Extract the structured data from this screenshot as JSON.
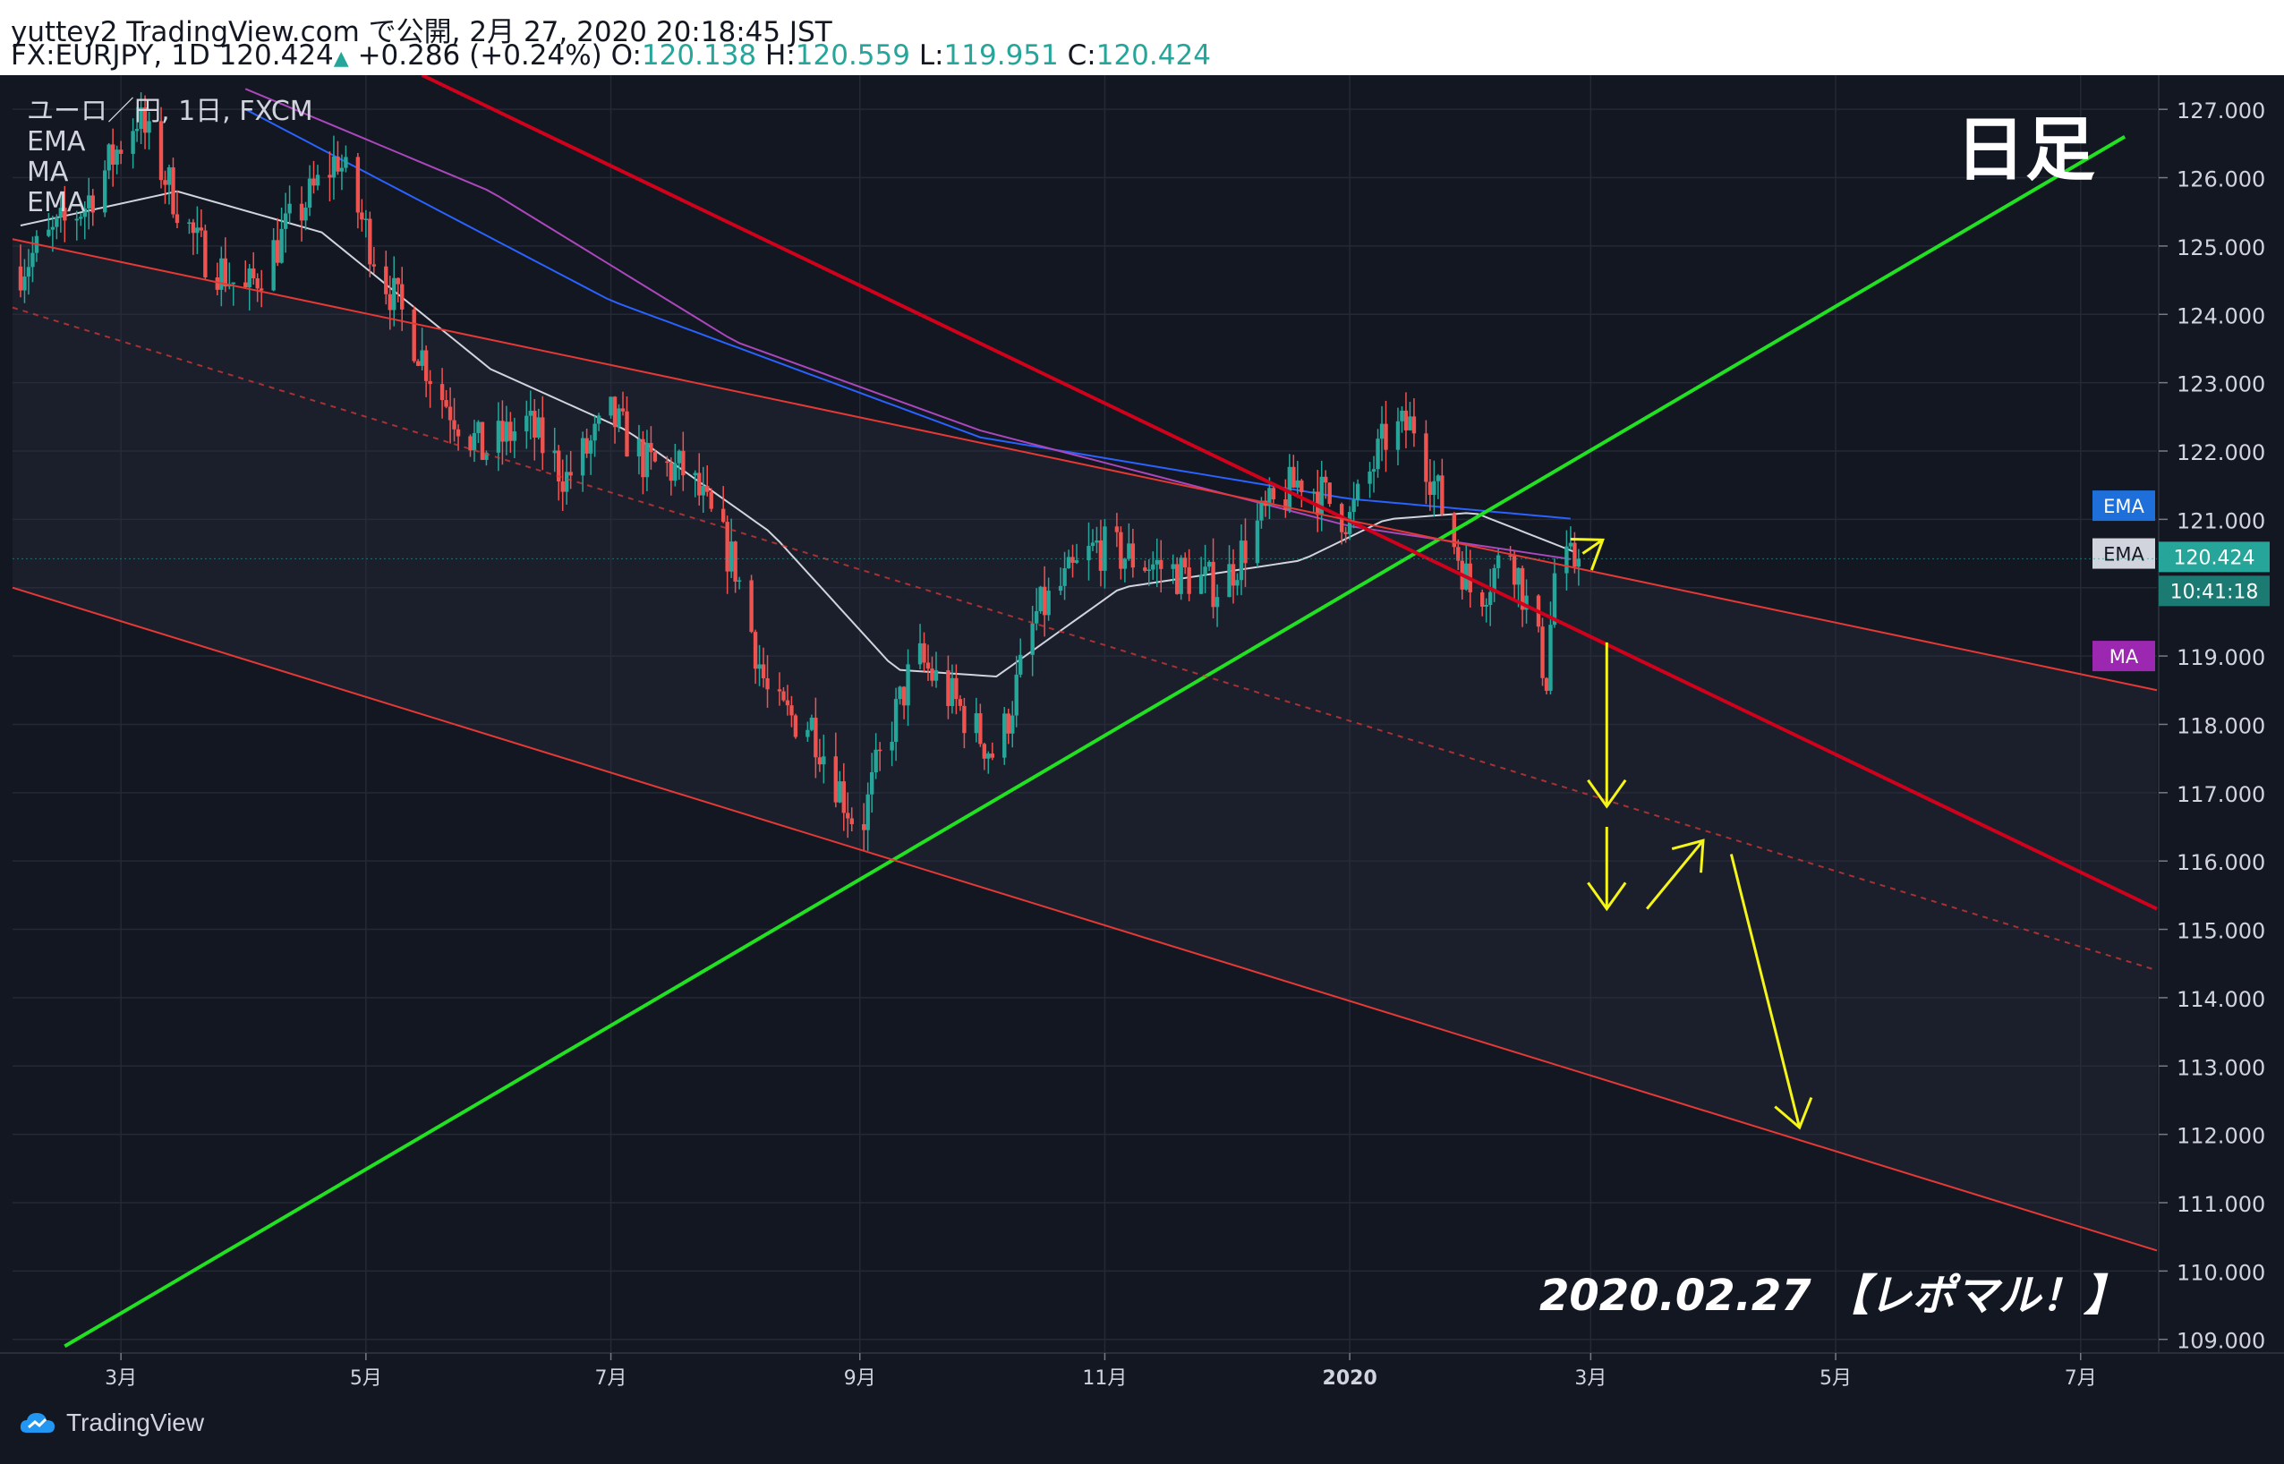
{
  "header": {
    "line1": "yuttey2 TradingView.com で公開, 2月 27, 2020 20:18:45 JST",
    "symbol": "FX:EURJPY, 1D 120.424",
    "change": "+0.286 (+0.24%)",
    "o_label": "O:",
    "o_value": "120.138",
    "h_label": "H:",
    "h_value": "120.559",
    "l_label": "L:",
    "l_value": "119.951",
    "c_label": "C:",
    "c_value": "120.424"
  },
  "legend": {
    "title": "ユーロ／円, 1日, FXCM",
    "items": [
      "EMA",
      "MA",
      "EMA"
    ]
  },
  "annotations": {
    "timeframe": "日足",
    "date_note": "2020.02.27 【レポマル！】"
  },
  "badges": {
    "ema1": "EMA",
    "ema2": "EMA",
    "price": "120.424",
    "countdown": "10:41:18",
    "ma": "MA"
  },
  "footer": {
    "brand": "TradingView"
  },
  "colors": {
    "background": "#131722",
    "up": "#26a69a",
    "down": "#ef5350",
    "green_line": "#22e022",
    "red_line": "#d0021b",
    "channel_line": "#e53935",
    "annotation": "#f5f518",
    "ema_long": "#2962ff",
    "ma": "#ab47bc",
    "ema_short": "#d1d4dc"
  },
  "chart_data": {
    "type": "candlestick",
    "symbol": "FX:EURJPY",
    "interval": "1D",
    "ylim": [
      108.8,
      127.5
    ],
    "y_ticks": [
      "109.000",
      "110.000",
      "111.000",
      "112.000",
      "113.000",
      "114.000",
      "115.000",
      "116.000",
      "117.000",
      "118.000",
      "119.000",
      "120.000",
      "121.000",
      "122.000",
      "123.000",
      "124.000",
      "125.000",
      "126.000",
      "127.000"
    ],
    "x_ticks": [
      "3月",
      "5月",
      "7月",
      "9月",
      "11月",
      "2020",
      "3月",
      "5月",
      "7月"
    ],
    "x_tick_dates": [
      "2019-03-01",
      "2019-05-01",
      "2019-07-01",
      "2019-09-01",
      "2019-11-01",
      "2020-01-01",
      "2020-03-01",
      "2020-05-01",
      "2020-07-01"
    ],
    "x_range": [
      "2019-02-02",
      "2020-07-20"
    ],
    "last_price": 120.424,
    "price_path": [
      [
        "2019-02-04",
        124.7
      ],
      [
        "2019-02-20",
        125.6
      ],
      [
        "2019-03-05",
        126.9
      ],
      [
        "2019-03-20",
        125.0
      ],
      [
        "2019-04-01",
        124.3
      ],
      [
        "2019-04-12",
        125.3
      ],
      [
        "2019-04-24",
        126.3
      ],
      [
        "2019-05-05",
        124.6
      ],
      [
        "2019-05-20",
        122.8
      ],
      [
        "2019-05-30",
        122.0
      ],
      [
        "2019-06-10",
        122.4
      ],
      [
        "2019-06-20",
        121.6
      ],
      [
        "2019-07-01",
        122.5
      ],
      [
        "2019-07-10",
        121.8
      ],
      [
        "2019-07-20",
        121.7
      ],
      [
        "2019-08-01",
        120.3
      ],
      [
        "2019-08-10",
        118.2
      ],
      [
        "2019-08-20",
        118.0
      ],
      [
        "2019-09-01",
        116.4
      ],
      [
        "2019-09-05",
        117.3
      ],
      [
        "2019-09-15",
        119.0
      ],
      [
        "2019-09-25",
        118.3
      ],
      [
        "2019-10-05",
        117.5
      ],
      [
        "2019-10-15",
        119.6
      ],
      [
        "2019-10-30",
        120.6
      ],
      [
        "2019-11-15",
        120.3
      ],
      [
        "2019-11-30",
        120.0
      ],
      [
        "2019-12-10",
        121.0
      ],
      [
        "2019-12-20",
        121.6
      ],
      [
        "2020-01-01",
        121.0
      ],
      [
        "2020-01-10",
        122.2
      ],
      [
        "2020-01-17",
        122.4
      ],
      [
        "2020-01-25",
        121.0
      ],
      [
        "2020-02-01",
        119.8
      ],
      [
        "2020-02-10",
        120.6
      ],
      [
        "2020-02-19",
        118.7
      ],
      [
        "2020-02-21",
        120.2
      ],
      [
        "2020-02-27",
        120.424
      ]
    ],
    "ema_long_path": [
      [
        "2019-04-01",
        127.0
      ],
      [
        "2019-07-01",
        124.2
      ],
      [
        "2019-10-01",
        122.2
      ],
      [
        "2020-01-01",
        121.3
      ],
      [
        "2020-02-27",
        121.0
      ]
    ],
    "ma_path": [
      [
        "2019-04-01",
        127.3
      ],
      [
        "2019-06-01",
        125.8
      ],
      [
        "2019-08-01",
        123.6
      ],
      [
        "2019-10-01",
        122.3
      ],
      [
        "2020-01-01",
        120.9
      ],
      [
        "2020-02-27",
        120.4
      ]
    ],
    "ema_short_path": [
      [
        "2019-02-04",
        125.3
      ],
      [
        "2019-03-15",
        125.8
      ],
      [
        "2019-04-20",
        125.2
      ],
      [
        "2019-06-01",
        123.2
      ],
      [
        "2019-07-05",
        122.3
      ],
      [
        "2019-08-10",
        120.8
      ],
      [
        "2019-09-10",
        118.8
      ],
      [
        "2019-10-05",
        118.7
      ],
      [
        "2019-11-05",
        120.0
      ],
      [
        "2019-12-20",
        120.4
      ],
      [
        "2020-01-10",
        121.0
      ],
      [
        "2020-02-01",
        121.1
      ],
      [
        "2020-02-27",
        120.5
      ]
    ],
    "trendlines": [
      {
        "name": "green_support",
        "color": "green",
        "points": [
          [
            "2019-02-15",
            108.9
          ],
          [
            "2020-07-12",
            126.6
          ]
        ]
      },
      {
        "name": "red_resistance",
        "color": "red",
        "points": [
          [
            "2019-05-15",
            127.5
          ],
          [
            "2020-07-20",
            115.3
          ]
        ]
      },
      {
        "name": "channel_top",
        "color": "red",
        "points": [
          [
            "2019-02-02",
            125.1
          ],
          [
            "2020-07-20",
            118.5
          ]
        ]
      },
      {
        "name": "channel_bottom",
        "color": "red",
        "points": [
          [
            "2019-02-02",
            120.0
          ],
          [
            "2020-07-20",
            110.3
          ]
        ]
      },
      {
        "name": "channel_mid",
        "color": "red",
        "dashed": true,
        "points": [
          [
            "2019-02-02",
            124.1
          ],
          [
            "2020-07-20",
            114.4
          ]
        ]
      }
    ],
    "projection_arrows": [
      [
        [
          "2020-02-28",
          120.5
        ],
        [
          "2020-03-04",
          120.7
        ]
      ],
      [
        [
          "2020-03-05",
          119.2
        ],
        [
          "2020-03-05",
          116.8
        ]
      ],
      [
        [
          "2020-03-05",
          116.5
        ],
        [
          "2020-03-05",
          115.3
        ]
      ],
      [
        [
          "2020-03-15",
          115.3
        ],
        [
          "2020-03-29",
          116.3
        ]
      ],
      [
        [
          "2020-04-05",
          116.1
        ],
        [
          "2020-04-22",
          112.1
        ]
      ]
    ]
  }
}
